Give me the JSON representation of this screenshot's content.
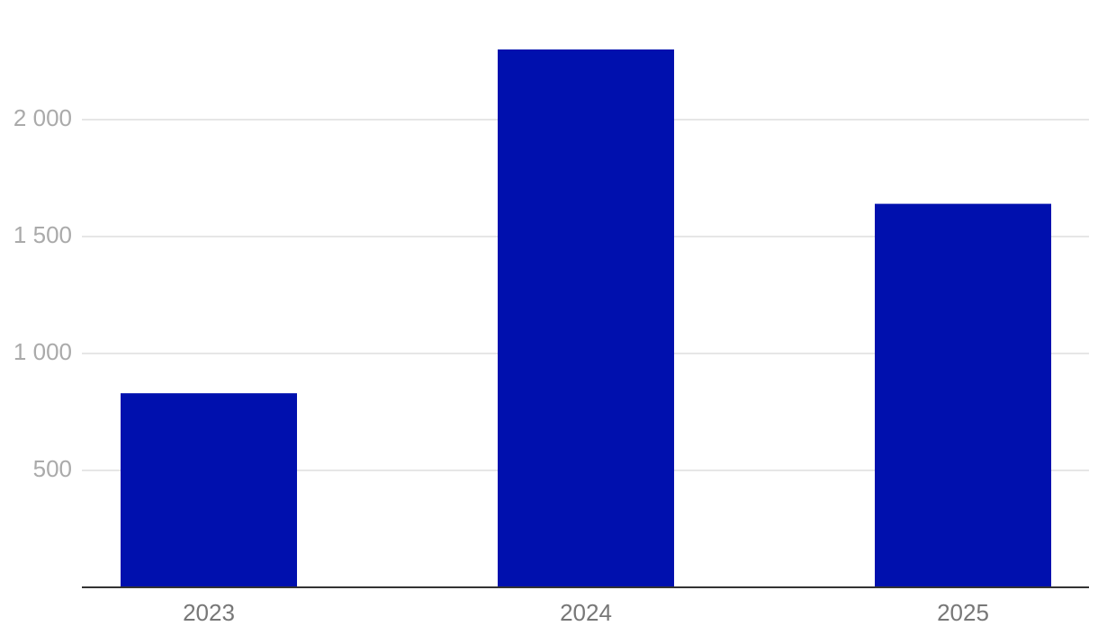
{
  "chart_data": {
    "type": "bar",
    "categories": [
      "2023",
      "2024",
      "2025"
    ],
    "values": [
      830,
      2300,
      1640
    ],
    "color": "#0010ae",
    "ylim": [
      0,
      2500
    ],
    "yticks": [
      500,
      {
        "value": 1000,
        "label": "1 000"
      },
      {
        "value": 1500,
        "label": "1 500"
      },
      {
        "value": 2000,
        "label": "2 000"
      }
    ],
    "grid": true
  }
}
